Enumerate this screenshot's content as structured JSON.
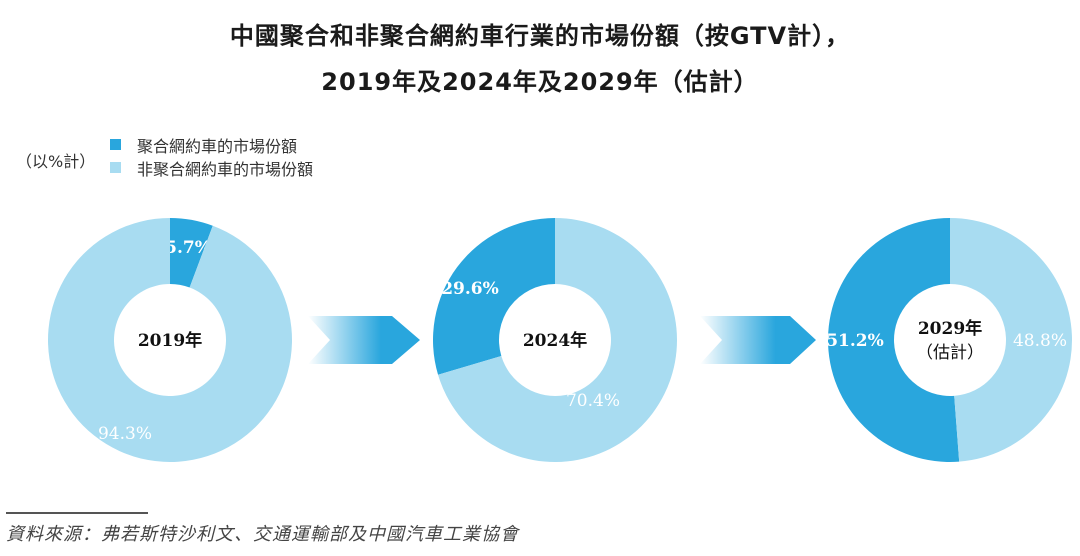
{
  "title": {
    "line1": "中國聚合和非聚合網約車行業的市場份額（按GTV計），",
    "line2": "2019年及2024年及2029年（估計）"
  },
  "unit_label": "（以%計）",
  "legend": [
    {
      "label": "聚合網約車的市場份額",
      "color": "#29a6dd"
    },
    {
      "label": "非聚合網約車的市場份額",
      "color": "#a8dcf1"
    }
  ],
  "colors": {
    "aggregated": "#29a6dd",
    "non_aggregated": "#a8dcf1",
    "arrow_start": "#ffffff",
    "arrow_end": "#29a6dd"
  },
  "source": "資料來源：弗若斯特沙利文、交通運輸部及中國汽車工業協會",
  "chart_data": [
    {
      "type": "pie",
      "subtype": "donut",
      "title": "2019年",
      "center_label": [
        "2019年"
      ],
      "categories": [
        "聚合網約車的市場份額",
        "非聚合網約車的市場份額"
      ],
      "values": [
        5.7,
        94.3
      ],
      "labels": [
        "5.7%",
        "94.3%"
      ]
    },
    {
      "type": "pie",
      "subtype": "donut",
      "title": "2024年",
      "center_label": [
        "2024年"
      ],
      "categories": [
        "聚合網約車的市場份額",
        "非聚合網約車的市場份額"
      ],
      "values": [
        29.6,
        70.4
      ],
      "labels": [
        "29.6%",
        "70.4%"
      ]
    },
    {
      "type": "pie",
      "subtype": "donut",
      "title": "2029年（估計）",
      "center_label": [
        "2029年",
        "（估計）"
      ],
      "categories": [
        "聚合網約車的市場份額",
        "非聚合網約車的市場份額"
      ],
      "values": [
        51.2,
        48.8
      ],
      "labels": [
        "51.2%",
        "48.8%"
      ]
    }
  ]
}
